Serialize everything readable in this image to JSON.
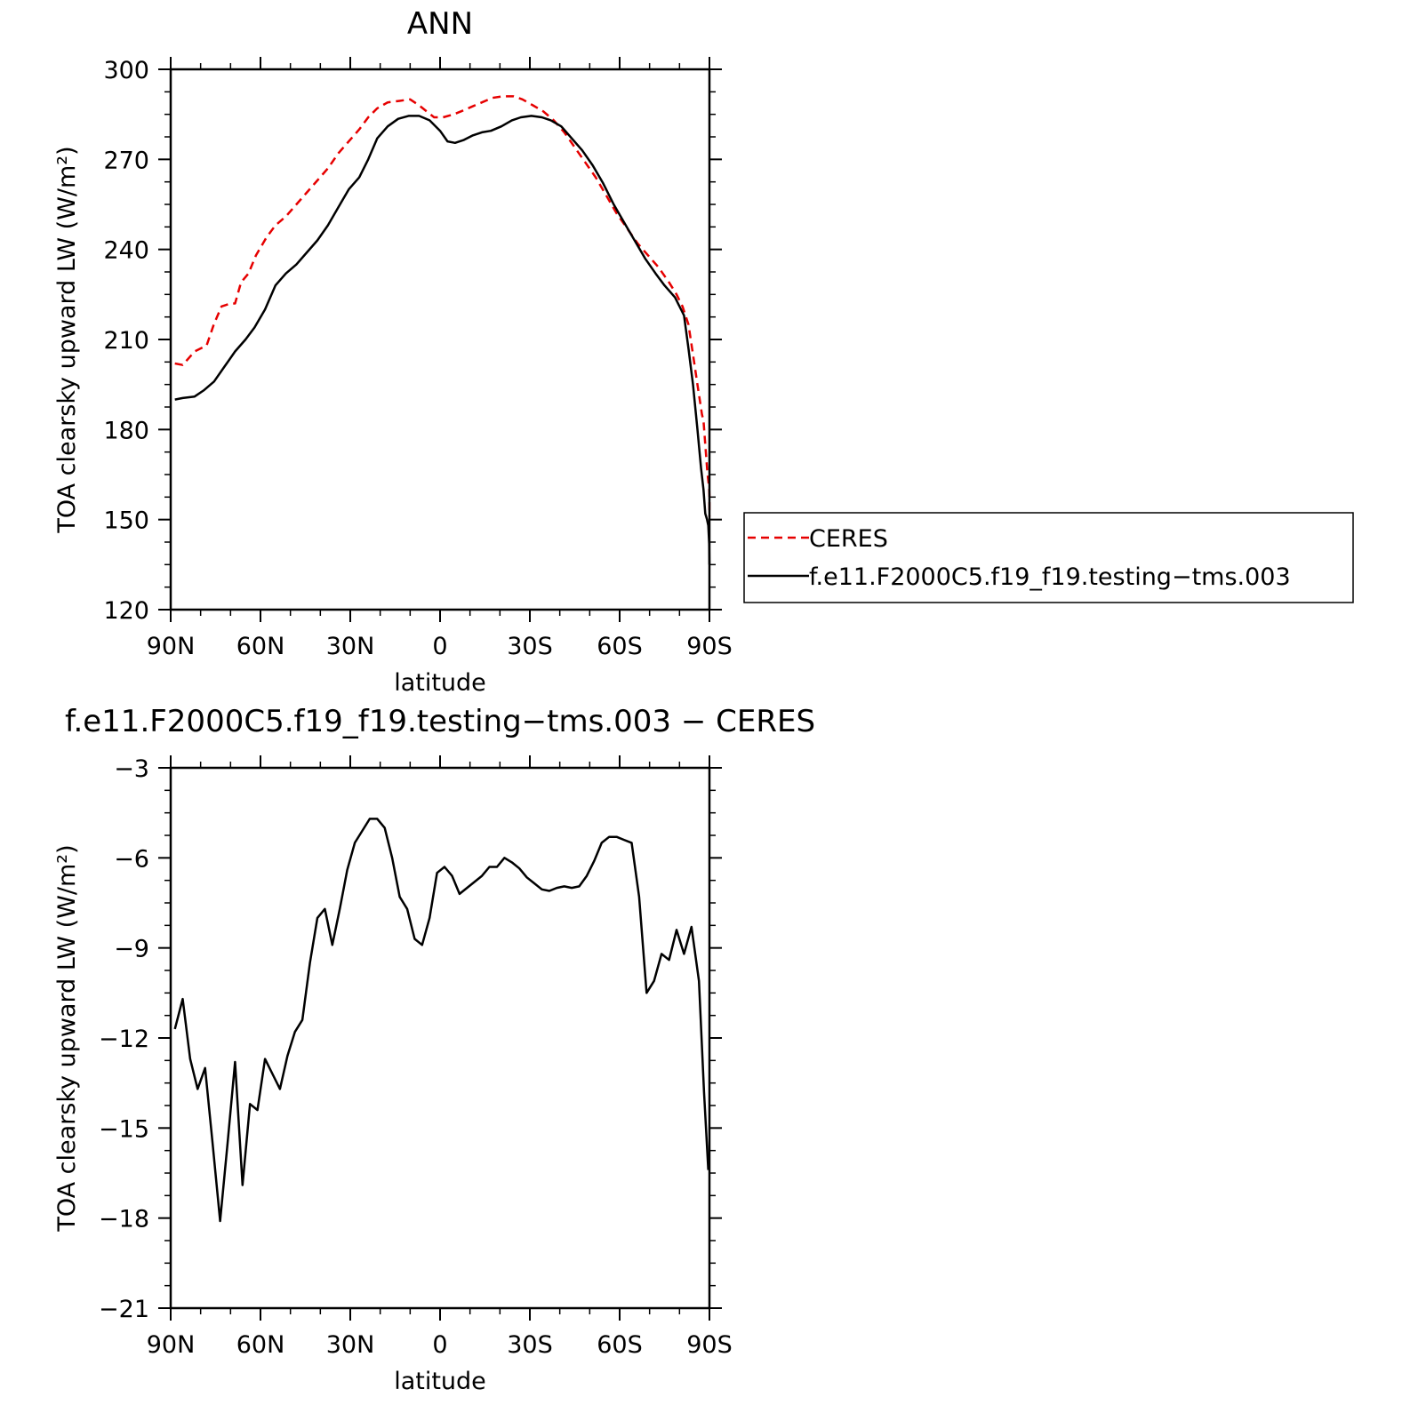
{
  "chart_data": [
    {
      "type": "line",
      "title": "ANN",
      "xlabel": "latitude",
      "ylabel": "TOA clearsky upward LW (W/m²)",
      "ylim": [
        120,
        300
      ],
      "yticks": [
        120,
        150,
        180,
        210,
        240,
        270,
        300
      ],
      "xlim": [
        90,
        -90
      ],
      "xticks": [
        90,
        60,
        30,
        0,
        -30,
        -60,
        -90
      ],
      "xtick_labels": [
        "90N",
        "60N",
        "30N",
        "0",
        "30S",
        "60S",
        "90S"
      ],
      "legend_placement": "right",
      "series": [
        {
          "name": "CERES",
          "color": "#e60000",
          "dash": "dashed",
          "points": [
            [
              88.6,
              202
            ],
            [
              86,
              201.5
            ],
            [
              82,
              206
            ],
            [
              78,
              208
            ],
            [
              75.6,
              215
            ],
            [
              73,
              221
            ],
            [
              70,
              222
            ],
            [
              68.5,
              222
            ],
            [
              66.5,
              229
            ],
            [
              64,
              232
            ],
            [
              61.5,
              238
            ],
            [
              58,
              244
            ],
            [
              55,
              248
            ],
            [
              51.5,
              251
            ],
            [
              48,
              255
            ],
            [
              44.5,
              259
            ],
            [
              41,
              263
            ],
            [
              37.5,
              267
            ],
            [
              34,
              272
            ],
            [
              30.5,
              276
            ],
            [
              27,
              280
            ],
            [
              24,
              284
            ],
            [
              21,
              287
            ],
            [
              17.5,
              289
            ],
            [
              13.5,
              289.5
            ],
            [
              10,
              290
            ],
            [
              7,
              288
            ],
            [
              4.5,
              286
            ],
            [
              2,
              284
            ],
            [
              -1,
              284
            ],
            [
              -4.5,
              285
            ],
            [
              -7,
              286
            ],
            [
              -10.5,
              287.5
            ],
            [
              -14,
              289
            ],
            [
              -17.5,
              290.5
            ],
            [
              -21,
              291
            ],
            [
              -24.5,
              291
            ],
            [
              -27.5,
              290
            ],
            [
              -31,
              288
            ],
            [
              -34.5,
              286
            ],
            [
              -38,
              283
            ],
            [
              -41.5,
              279
            ],
            [
              -45,
              274
            ],
            [
              -48.5,
              269
            ],
            [
              -52,
              264
            ],
            [
              -55.5,
              258
            ],
            [
              -59,
              252
            ],
            [
              -62.5,
              247
            ],
            [
              -66,
              242
            ],
            [
              -69.5,
              238
            ],
            [
              -73,
              234
            ],
            [
              -76.5,
              229
            ],
            [
              -79,
              225
            ],
            [
              -81,
              221
            ],
            [
              -83,
              215
            ],
            [
              -84.5,
              205
            ],
            [
              -86,
              195
            ],
            [
              -87.5,
              185
            ],
            [
              -88,
              183
            ],
            [
              -88.6,
              175
            ],
            [
              -89,
              170
            ],
            [
              -89.3,
              166
            ],
            [
              -89.6,
              163
            ],
            [
              -89.9,
              160.5
            ],
            [
              -90,
              158
            ],
            [
              -90,
              151
            ]
          ]
        },
        {
          "name": "f.e11.F2000C5.f19_f19.testing−tms.003",
          "color": "#000000",
          "dash": "solid",
          "points": [
            [
              88.6,
              190
            ],
            [
              86,
              190.5
            ],
            [
              82,
              191
            ],
            [
              79,
              193
            ],
            [
              75.5,
              196
            ],
            [
              72,
              201
            ],
            [
              68.5,
              206
            ],
            [
              65,
              210
            ],
            [
              62,
              214
            ],
            [
              58.5,
              220
            ],
            [
              55,
              228
            ],
            [
              51.5,
              232
            ],
            [
              48,
              235
            ],
            [
              44.5,
              239
            ],
            [
              41,
              243
            ],
            [
              37.5,
              248
            ],
            [
              34,
              254
            ],
            [
              30.5,
              260
            ],
            [
              27,
              264
            ],
            [
              24,
              270
            ],
            [
              21,
              277
            ],
            [
              17.5,
              281
            ],
            [
              14,
              283.5
            ],
            [
              10.5,
              284.5
            ],
            [
              7,
              284.5
            ],
            [
              3.5,
              283
            ],
            [
              0,
              279.5
            ],
            [
              -2.5,
              276
            ],
            [
              -5,
              275.5
            ],
            [
              -8,
              276.5
            ],
            [
              -11,
              278
            ],
            [
              -14,
              279
            ],
            [
              -17,
              279.5
            ],
            [
              -20.5,
              281
            ],
            [
              -24,
              283
            ],
            [
              -27,
              284
            ],
            [
              -30.5,
              284.5
            ],
            [
              -34,
              284
            ],
            [
              -37,
              283
            ],
            [
              -40.5,
              281
            ],
            [
              -44,
              277
            ],
            [
              -47.5,
              273
            ],
            [
              -51,
              268
            ],
            [
              -54.5,
              262
            ],
            [
              -58,
              255
            ],
            [
              -61.5,
              249
            ],
            [
              -65,
              243
            ],
            [
              -68.5,
              237
            ],
            [
              -72,
              232
            ],
            [
              -75,
              228
            ],
            [
              -78.5,
              224
            ],
            [
              -81.5,
              218
            ],
            [
              -83,
              207
            ],
            [
              -84.5,
              195
            ],
            [
              -86,
              180
            ],
            [
              -87.2,
              167
            ],
            [
              -88,
              160
            ],
            [
              -88.6,
              152
            ],
            [
              -89.2,
              150
            ],
            [
              -89.6,
              148
            ],
            [
              -89.9,
              142
            ],
            [
              -90,
              135
            ]
          ]
        }
      ]
    },
    {
      "type": "line",
      "title": "f.e11.F2000C5.f19_f19.testing−tms.003 − CERES",
      "xlabel": "latitude",
      "ylabel": "TOA clearsky upward LW (W/m²)",
      "ylim": [
        -21,
        -3
      ],
      "yticks": [
        -21,
        -18,
        -15,
        -12,
        -9,
        -6,
        -3
      ],
      "xlim": [
        90,
        -90
      ],
      "xticks": [
        90,
        60,
        30,
        0,
        -30,
        -60,
        -90
      ],
      "xtick_labels": [
        "90N",
        "60N",
        "30N",
        "0",
        "30S",
        "60S",
        "90S"
      ],
      "series": [
        {
          "color": "#000000",
          "dash": "solid",
          "points": [
            [
              88.6,
              -11.7
            ],
            [
              86,
              -10.7
            ],
            [
              83.5,
              -12.7
            ],
            [
              81,
              -13.7
            ],
            [
              78.5,
              -13.0
            ],
            [
              76,
              -15.5
            ],
            [
              73.5,
              -18.1
            ],
            [
              71,
              -15.5
            ],
            [
              68.5,
              -12.8
            ],
            [
              66,
              -16.9
            ],
            [
              63.5,
              -14.2
            ],
            [
              61,
              -14.4
            ],
            [
              58.5,
              -12.7
            ],
            [
              56,
              -13.2
            ],
            [
              53.5,
              -13.7
            ],
            [
              51,
              -12.6
            ],
            [
              48.5,
              -11.8
            ],
            [
              46,
              -11.4
            ],
            [
              43.5,
              -9.5
            ],
            [
              41,
              -8.0
            ],
            [
              38.5,
              -7.7
            ],
            [
              36,
              -8.9
            ],
            [
              33.5,
              -7.7
            ],
            [
              31,
              -6.4
            ],
            [
              28.5,
              -5.5
            ],
            [
              26,
              -5.1
            ],
            [
              23.5,
              -4.7
            ],
            [
              21,
              -4.7
            ],
            [
              18.5,
              -5.0
            ],
            [
              16,
              -6.0
            ],
            [
              13.5,
              -7.3
            ],
            [
              11,
              -7.7
            ],
            [
              8.5,
              -8.7
            ],
            [
              6,
              -8.9
            ],
            [
              3.5,
              -8.0
            ],
            [
              1,
              -6.5
            ],
            [
              -1.5,
              -6.3
            ],
            [
              -4,
              -6.6
            ],
            [
              -6.5,
              -7.2
            ],
            [
              -9,
              -7.0
            ],
            [
              -11.5,
              -6.8
            ],
            [
              -14,
              -6.6
            ],
            [
              -16.5,
              -6.3
            ],
            [
              -19,
              -6.3
            ],
            [
              -21.5,
              -6.0
            ],
            [
              -24,
              -6.15
            ],
            [
              -26.5,
              -6.35
            ],
            [
              -29,
              -6.65
            ],
            [
              -31.5,
              -6.85
            ],
            [
              -34,
              -7.05
            ],
            [
              -36.5,
              -7.1
            ],
            [
              -39,
              -7.0
            ],
            [
              -41.5,
              -6.95
            ],
            [
              -44,
              -7.0
            ],
            [
              -46.5,
              -6.95
            ],
            [
              -49,
              -6.6
            ],
            [
              -51.5,
              -6.1
            ],
            [
              -54,
              -5.5
            ],
            [
              -56.5,
              -5.3
            ],
            [
              -59,
              -5.3
            ],
            [
              -61.5,
              -5.4
            ],
            [
              -64,
              -5.5
            ],
            [
              -66.5,
              -7.3
            ],
            [
              -69,
              -10.5
            ],
            [
              -71.5,
              -10.1
            ],
            [
              -74,
              -9.2
            ],
            [
              -76.5,
              -9.4
            ],
            [
              -79,
              -8.4
            ],
            [
              -81.5,
              -9.2
            ],
            [
              -84,
              -8.3
            ],
            [
              -86.5,
              -10.1
            ],
            [
              -88.2,
              -13.8
            ],
            [
              -89.6,
              -16.4
            ]
          ]
        }
      ]
    }
  ]
}
